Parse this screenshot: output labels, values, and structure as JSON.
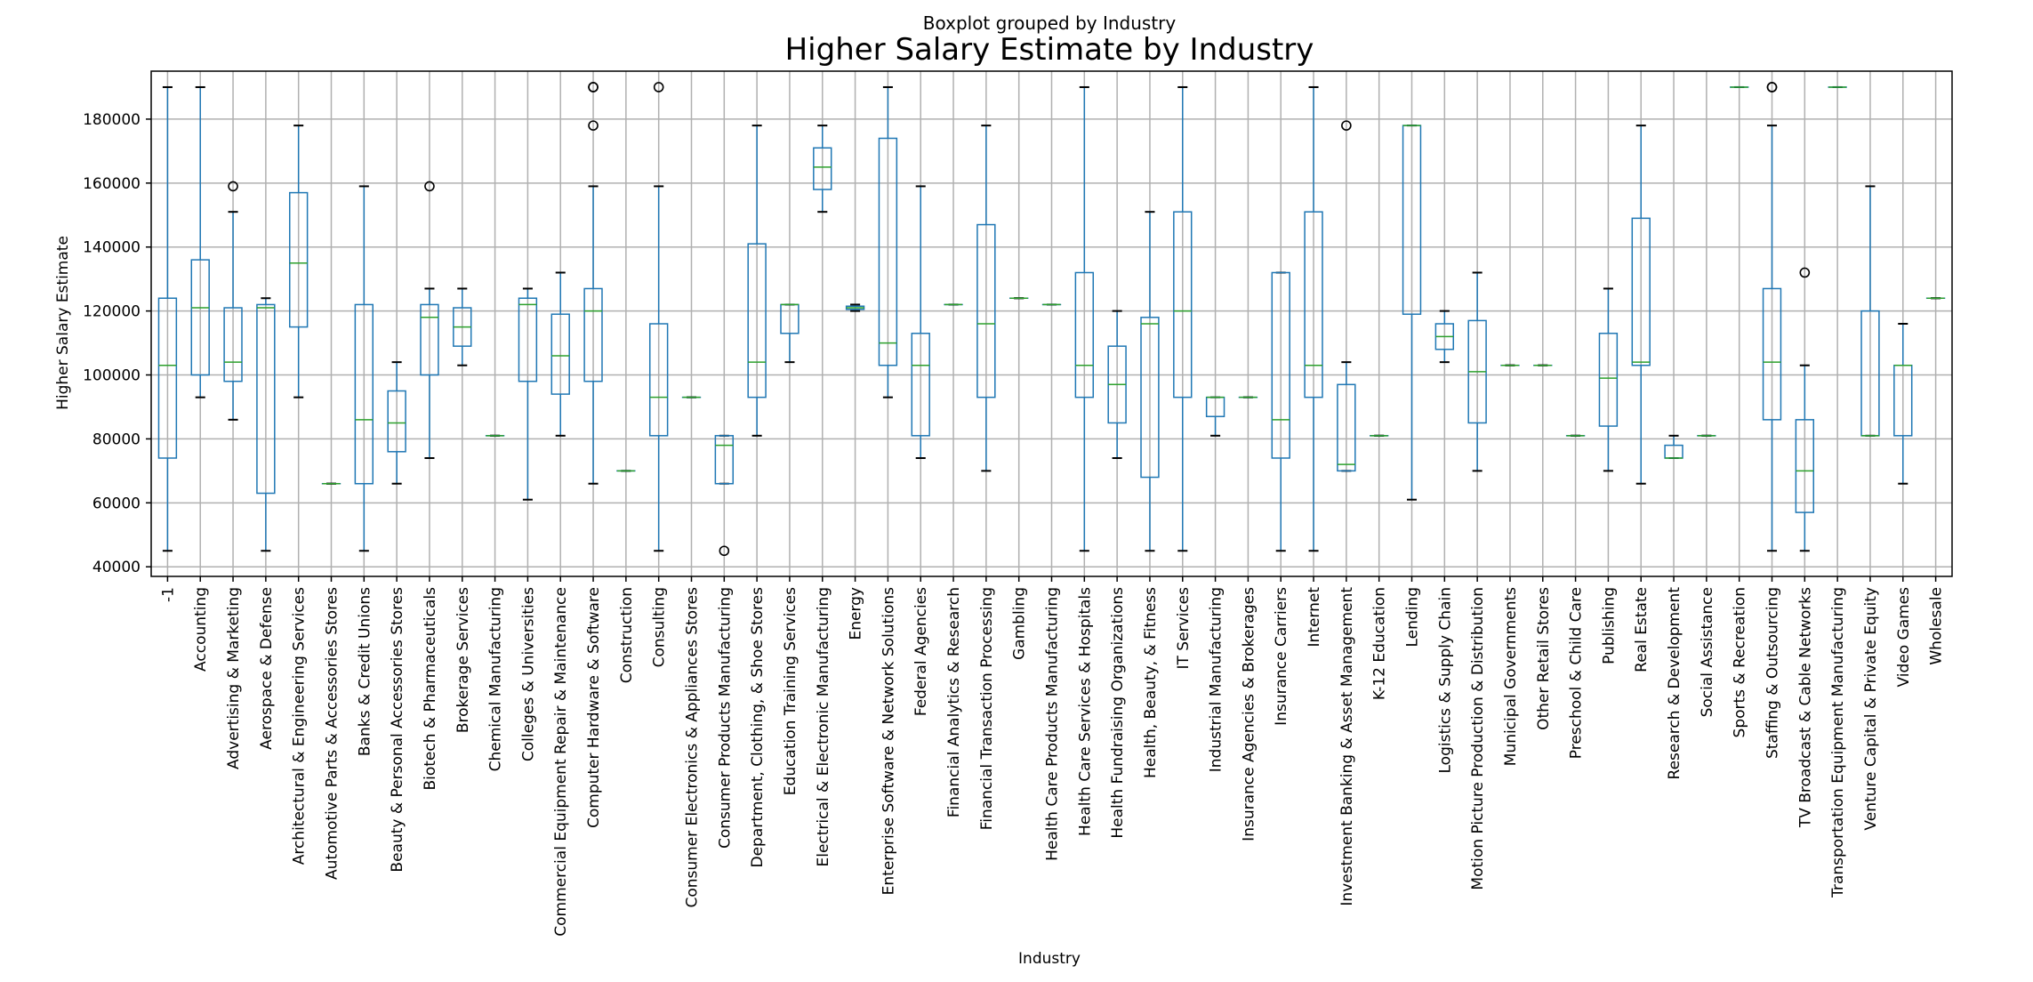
{
  "chart_data": {
    "type": "boxplot",
    "suptitle": "Boxplot grouped by Industry",
    "title": "Higher Salary Estimate by Industry",
    "xlabel": "Industry",
    "ylabel": "Higher Salary Estimate",
    "ylim": [
      37000,
      195000
    ],
    "yticks": [
      40000,
      60000,
      80000,
      100000,
      120000,
      140000,
      160000,
      180000
    ],
    "grid": true,
    "colors": {
      "box": "#1f77b4",
      "median": "#2ca02c",
      "cap": "#000000",
      "flier": "#000000",
      "grid": "#b0b0b0"
    },
    "categories": [
      "-1",
      "Accounting",
      "Advertising & Marketing",
      "Aerospace & Defense",
      "Architectural & Engineering Services",
      "Automotive Parts & Accessories Stores",
      "Banks & Credit Unions",
      "Beauty & Personal Accessories Stores",
      "Biotech & Pharmaceuticals",
      "Brokerage Services",
      "Chemical Manufacturing",
      "Colleges & Universities",
      "Commercial Equipment Repair & Maintenance",
      "Computer Hardware & Software",
      "Construction",
      "Consulting",
      "Consumer Electronics & Appliances Stores",
      "Consumer Products Manufacturing",
      "Department, Clothing, & Shoe Stores",
      "Education Training Services",
      "Electrical & Electronic Manufacturing",
      "Energy",
      "Enterprise Software & Network Solutions",
      "Federal Agencies",
      "Financial Analytics & Research",
      "Financial Transaction Processing",
      "Gambling",
      "Health Care Products Manufacturing",
      "Health Care Services & Hospitals",
      "Health Fundraising Organizations",
      "Health, Beauty, & Fitness",
      "IT Services",
      "Industrial Manufacturing",
      "Insurance Agencies & Brokerages",
      "Insurance Carriers",
      "Internet",
      "Investment Banking & Asset Management",
      "K-12 Education",
      "Lending",
      "Logistics & Supply Chain",
      "Motion Picture Production & Distribution",
      "Municipal Governments",
      "Other Retail Stores",
      "Preschool & Child Care",
      "Publishing",
      "Real Estate",
      "Research & Development",
      "Social Assistance",
      "Sports & Recreation",
      "Staffing & Outsourcing",
      "TV Broadcast & Cable Networks",
      "Transportation Equipment Manufacturing",
      "Venture Capital & Private Equity",
      "Video Games",
      "Wholesale"
    ],
    "boxes": [
      {
        "whislo": 45000,
        "q1": 74000,
        "med": 103000,
        "q3": 124000,
        "whishi": 190000,
        "fliers": []
      },
      {
        "whislo": 93000,
        "q1": 100000,
        "med": 121000,
        "q3": 136000,
        "whishi": 190000,
        "fliers": []
      },
      {
        "whislo": 86000,
        "q1": 98000,
        "med": 104000,
        "q3": 121000,
        "whishi": 151000,
        "fliers": [
          159000
        ]
      },
      {
        "whislo": 45000,
        "q1": 63000,
        "med": 121000,
        "q3": 122000,
        "whishi": 124000,
        "fliers": []
      },
      {
        "whislo": 93000,
        "q1": 115000,
        "med": 135000,
        "q3": 157000,
        "whishi": 178000,
        "fliers": []
      },
      {
        "whislo": 66000,
        "q1": 66000,
        "med": 66000,
        "q3": 66000,
        "whishi": 66000,
        "fliers": []
      },
      {
        "whislo": 45000,
        "q1": 66000,
        "med": 86000,
        "q3": 122000,
        "whishi": 159000,
        "fliers": []
      },
      {
        "whislo": 66000,
        "q1": 76000,
        "med": 85000,
        "q3": 95000,
        "whishi": 104000,
        "fliers": []
      },
      {
        "whislo": 74000,
        "q1": 100000,
        "med": 118000,
        "q3": 122000,
        "whishi": 127000,
        "fliers": [
          159000
        ]
      },
      {
        "whislo": 103000,
        "q1": 109000,
        "med": 115000,
        "q3": 121000,
        "whishi": 127000,
        "fliers": []
      },
      {
        "whislo": 81000,
        "q1": 81000,
        "med": 81000,
        "q3": 81000,
        "whishi": 81000,
        "fliers": []
      },
      {
        "whislo": 61000,
        "q1": 98000,
        "med": 122000,
        "q3": 124000,
        "whishi": 127000,
        "fliers": []
      },
      {
        "whislo": 81000,
        "q1": 94000,
        "med": 106000,
        "q3": 119000,
        "whishi": 132000,
        "fliers": []
      },
      {
        "whislo": 66000,
        "q1": 98000,
        "med": 120000,
        "q3": 127000,
        "whishi": 159000,
        "fliers": [
          178000,
          190000,
          190000
        ]
      },
      {
        "whislo": 70000,
        "q1": 70000,
        "med": 70000,
        "q3": 70000,
        "whishi": 70000,
        "fliers": []
      },
      {
        "whislo": 45000,
        "q1": 81000,
        "med": 93000,
        "q3": 116000,
        "whishi": 159000,
        "fliers": [
          190000
        ]
      },
      {
        "whislo": 93000,
        "q1": 93000,
        "med": 93000,
        "q3": 93000,
        "whishi": 93000,
        "fliers": []
      },
      {
        "whislo": 66000,
        "q1": 66000,
        "med": 78000,
        "q3": 81000,
        "whishi": 81000,
        "fliers": [
          45000
        ]
      },
      {
        "whislo": 81000,
        "q1": 93000,
        "med": 104000,
        "q3": 141000,
        "whishi": 178000,
        "fliers": []
      },
      {
        "whislo": 104000,
        "q1": 113000,
        "med": 122000,
        "q3": 122000,
        "whishi": 122000,
        "fliers": []
      },
      {
        "whislo": 151000,
        "q1": 158000,
        "med": 165000,
        "q3": 171000,
        "whishi": 178000,
        "fliers": []
      },
      {
        "whislo": 120000,
        "q1": 120500,
        "med": 121000,
        "q3": 121500,
        "whishi": 122000,
        "fliers": []
      },
      {
        "whislo": 93000,
        "q1": 103000,
        "med": 110000,
        "q3": 174000,
        "whishi": 190000,
        "fliers": []
      },
      {
        "whislo": 74000,
        "q1": 81000,
        "med": 103000,
        "q3": 113000,
        "whishi": 159000,
        "fliers": []
      },
      {
        "whislo": 122000,
        "q1": 122000,
        "med": 122000,
        "q3": 122000,
        "whishi": 122000,
        "fliers": []
      },
      {
        "whislo": 70000,
        "q1": 93000,
        "med": 116000,
        "q3": 147000,
        "whishi": 178000,
        "fliers": []
      },
      {
        "whislo": 124000,
        "q1": 124000,
        "med": 124000,
        "q3": 124000,
        "whishi": 124000,
        "fliers": []
      },
      {
        "whislo": 122000,
        "q1": 122000,
        "med": 122000,
        "q3": 122000,
        "whishi": 122000,
        "fliers": []
      },
      {
        "whislo": 45000,
        "q1": 93000,
        "med": 103000,
        "q3": 132000,
        "whishi": 190000,
        "fliers": []
      },
      {
        "whislo": 74000,
        "q1": 85000,
        "med": 97000,
        "q3": 109000,
        "whishi": 120000,
        "fliers": []
      },
      {
        "whislo": 45000,
        "q1": 68000,
        "med": 116000,
        "q3": 118000,
        "whishi": 151000,
        "fliers": []
      },
      {
        "whislo": 45000,
        "q1": 93000,
        "med": 120000,
        "q3": 151000,
        "whishi": 190000,
        "fliers": []
      },
      {
        "whislo": 81000,
        "q1": 87000,
        "med": 93000,
        "q3": 93000,
        "whishi": 93000,
        "fliers": []
      },
      {
        "whislo": 93000,
        "q1": 93000,
        "med": 93000,
        "q3": 93000,
        "whishi": 93000,
        "fliers": []
      },
      {
        "whislo": 45000,
        "q1": 74000,
        "med": 86000,
        "q3": 132000,
        "whishi": 132000,
        "fliers": []
      },
      {
        "whislo": 45000,
        "q1": 93000,
        "med": 103000,
        "q3": 151000,
        "whishi": 190000,
        "fliers": []
      },
      {
        "whislo": 70000,
        "q1": 70000,
        "med": 72000,
        "q3": 97000,
        "whishi": 104000,
        "fliers": [
          178000
        ]
      },
      {
        "whislo": 81000,
        "q1": 81000,
        "med": 81000,
        "q3": 81000,
        "whishi": 81000,
        "fliers": []
      },
      {
        "whislo": 61000,
        "q1": 119000,
        "med": 178000,
        "q3": 178000,
        "whishi": 178000,
        "fliers": []
      },
      {
        "whislo": 104000,
        "q1": 108000,
        "med": 112000,
        "q3": 116000,
        "whishi": 120000,
        "fliers": []
      },
      {
        "whislo": 70000,
        "q1": 85000,
        "med": 101000,
        "q3": 117000,
        "whishi": 132000,
        "fliers": []
      },
      {
        "whislo": 103000,
        "q1": 103000,
        "med": 103000,
        "q3": 103000,
        "whishi": 103000,
        "fliers": []
      },
      {
        "whislo": 103000,
        "q1": 103000,
        "med": 103000,
        "q3": 103000,
        "whishi": 103000,
        "fliers": []
      },
      {
        "whislo": 81000,
        "q1": 81000,
        "med": 81000,
        "q3": 81000,
        "whishi": 81000,
        "fliers": []
      },
      {
        "whislo": 70000,
        "q1": 84000,
        "med": 99000,
        "q3": 113000,
        "whishi": 127000,
        "fliers": []
      },
      {
        "whislo": 66000,
        "q1": 103000,
        "med": 104000,
        "q3": 149000,
        "whishi": 178000,
        "fliers": []
      },
      {
        "whislo": 74000,
        "q1": 74000,
        "med": 74000,
        "q3": 78000,
        "whishi": 81000,
        "fliers": []
      },
      {
        "whislo": 81000,
        "q1": 81000,
        "med": 81000,
        "q3": 81000,
        "whishi": 81000,
        "fliers": []
      },
      {
        "whislo": 190000,
        "q1": 190000,
        "med": 190000,
        "q3": 190000,
        "whishi": 190000,
        "fliers": []
      },
      {
        "whislo": 45000,
        "q1": 86000,
        "med": 104000,
        "q3": 127000,
        "whishi": 178000,
        "fliers": [
          190000,
          190000
        ]
      },
      {
        "whislo": 45000,
        "q1": 57000,
        "med": 70000,
        "q3": 86000,
        "whishi": 103000,
        "fliers": [
          132000
        ]
      },
      {
        "whislo": 190000,
        "q1": 190000,
        "med": 190000,
        "q3": 190000,
        "whishi": 190000,
        "fliers": []
      },
      {
        "whislo": 81000,
        "q1": 81000,
        "med": 81000,
        "q3": 120000,
        "whishi": 159000,
        "fliers": []
      },
      {
        "whislo": 66000,
        "q1": 81000,
        "med": 103000,
        "q3": 103000,
        "whishi": 116000,
        "fliers": []
      },
      {
        "whislo": 124000,
        "q1": 124000,
        "med": 124000,
        "q3": 124000,
        "whishi": 124000,
        "fliers": []
      }
    ]
  }
}
